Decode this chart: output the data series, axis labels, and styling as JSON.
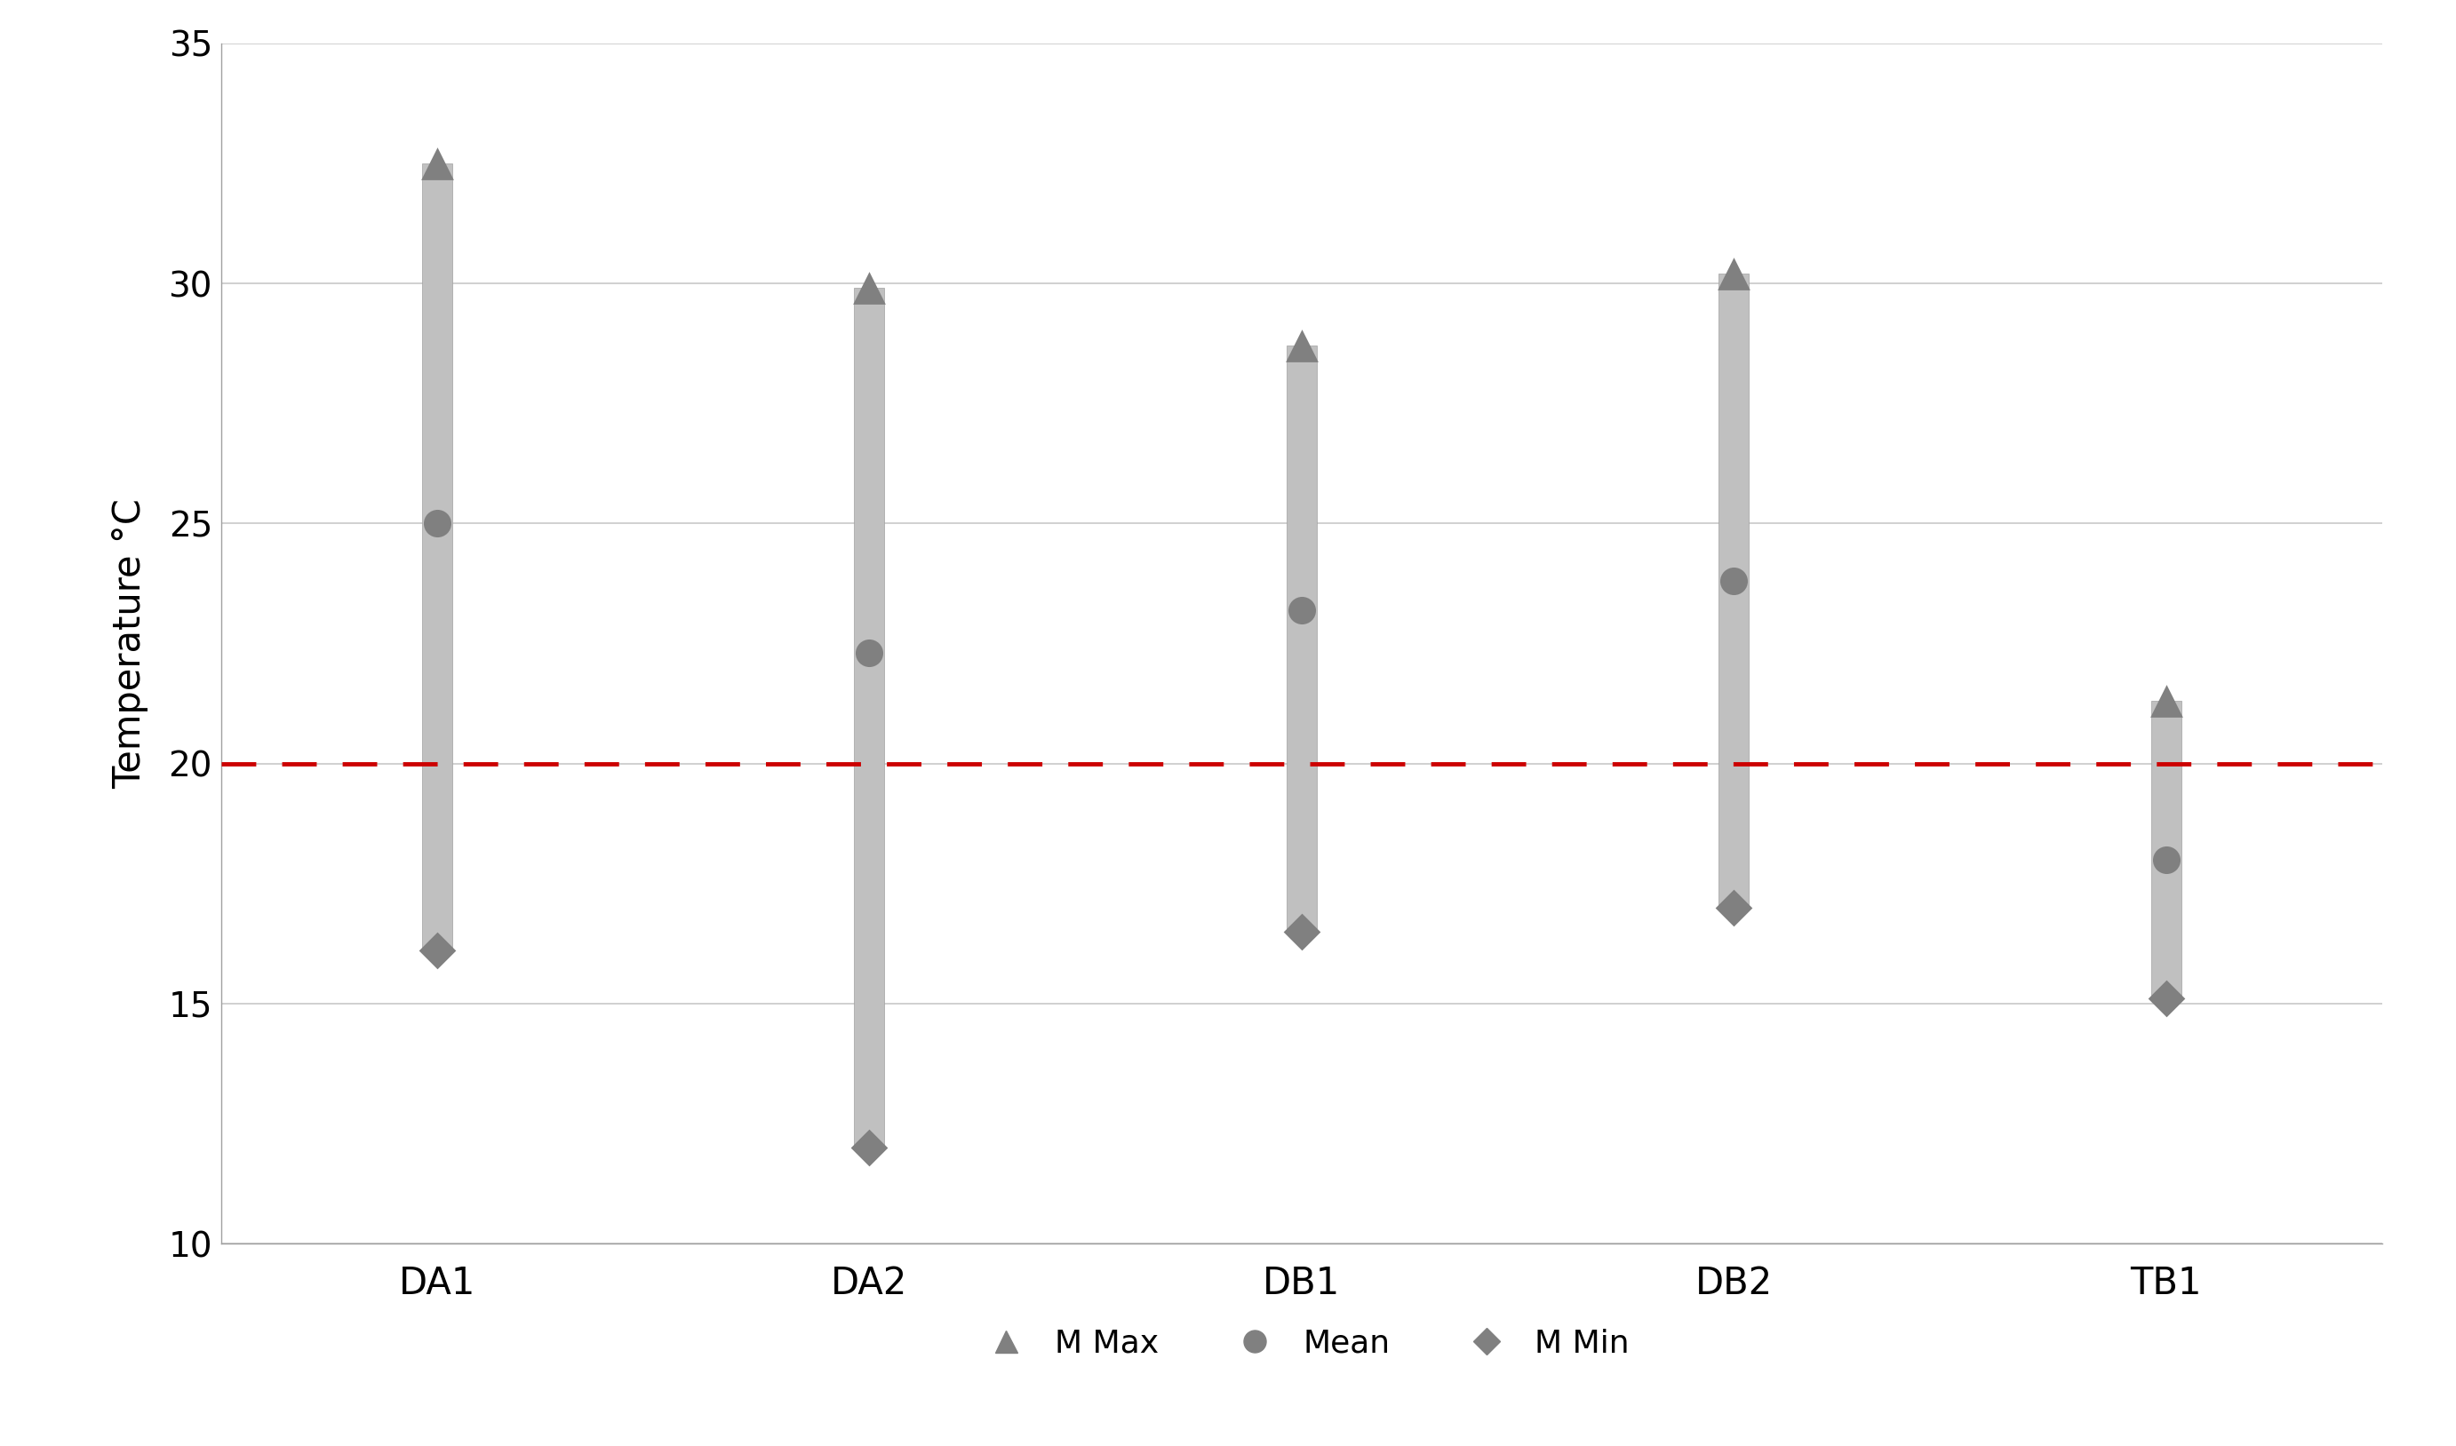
{
  "categories": [
    "DA1",
    "DA2",
    "DB1",
    "DB2",
    "TB1"
  ],
  "m_max": [
    32.5,
    29.9,
    28.7,
    30.2,
    21.3
  ],
  "mean": [
    25.0,
    22.3,
    23.2,
    23.8,
    18.0
  ],
  "m_min": [
    16.1,
    12.0,
    16.5,
    17.0,
    15.1
  ],
  "ref_line": 20,
  "ylabel": "Temperature °C",
  "ylim": [
    10,
    35
  ],
  "yticks": [
    10,
    15,
    20,
    25,
    30,
    35
  ],
  "bar_color": "#c0c0c0",
  "bar_width": 0.07,
  "ref_color": "#cc0000",
  "marker_color": "#808080",
  "legend_labels": [
    "M Max",
    "Mean",
    "M Min"
  ],
  "background_color": "#ffffff",
  "grid_color": "#c8c8c8",
  "tick_fontsize": 28,
  "label_fontsize": 30,
  "legend_fontsize": 26,
  "cat_fontsize": 30
}
